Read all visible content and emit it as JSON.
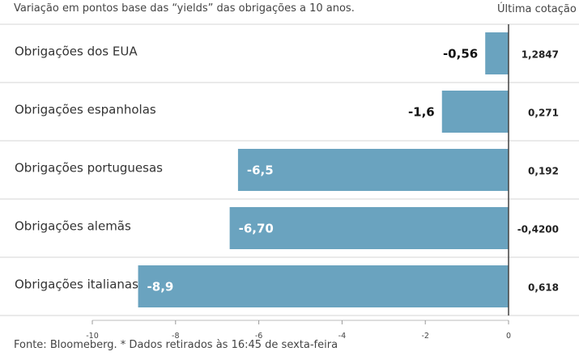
{
  "chart_data": {
    "type": "bar",
    "orientation": "horizontal",
    "subtitle": "Variação em pontos base das “yields” das obrigações a 10 anos.",
    "last_quote_header": "Última cotação",
    "categories": [
      "Obrigações dos EUA",
      "Obrigações espanholas",
      "Obrigações portuguesas",
      "Obrigações alemãs",
      "Obrigações italianas"
    ],
    "values": [
      -0.56,
      -1.6,
      -6.5,
      -6.7,
      -8.9
    ],
    "value_labels": [
      "-0,56",
      "-1,6",
      "-6,5",
      "-6,70",
      "-8,9"
    ],
    "last_quotes": [
      "1,2847",
      "0,271",
      "0,192",
      "-0,4200",
      "0,618"
    ],
    "xlim": [
      -10,
      0
    ],
    "xticks": [
      -10,
      -8,
      -6,
      -4,
      -2,
      0
    ],
    "xtick_labels": [
      "-10",
      "-8",
      "-6",
      "-4",
      "-2",
      "0"
    ],
    "bar_color": "#6aa3bf",
    "footer": "Fonte: Bloomeberg. * Dados retirados às 16:45 de sexta-feira"
  }
}
